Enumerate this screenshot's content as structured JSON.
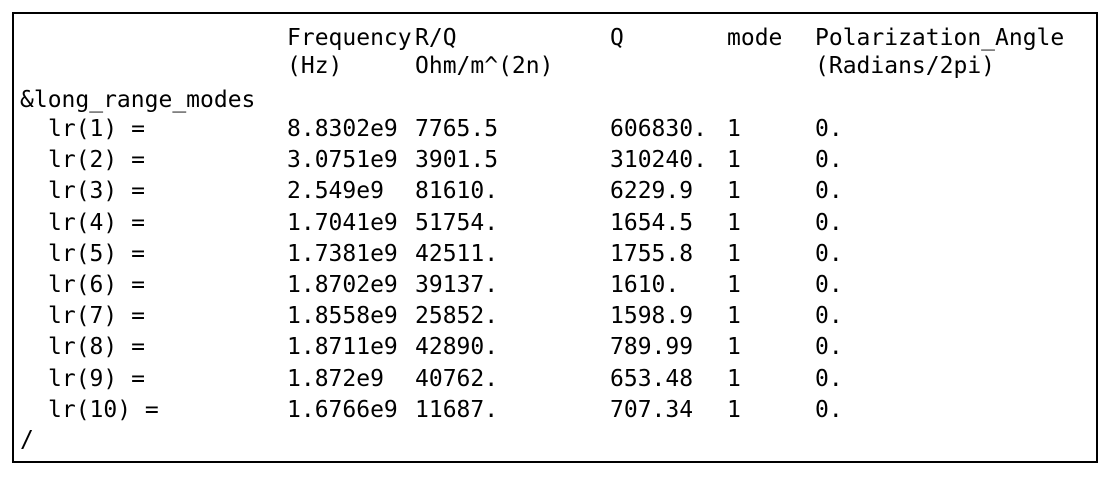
{
  "header": {
    "columns": [
      {
        "lines": [
          "Frequency",
          "(Hz)"
        ]
      },
      {
        "lines": [
          "R/Q",
          "Ohm/m^(2n)"
        ]
      },
      {
        "lines": [
          "Q"
        ]
      },
      {
        "lines": [
          "mode"
        ]
      },
      {
        "lines": [
          "Polarization_Angle",
          "(Radians/2pi)"
        ]
      }
    ]
  },
  "section": "&long_range_modes",
  "rows": [
    {
      "label": "lr(1) =",
      "cells": [
        "8.8302e9",
        "7765.5",
        "606830.",
        "1",
        "0."
      ]
    },
    {
      "label": "lr(2) =",
      "cells": [
        "3.0751e9",
        "3901.5",
        "310240.",
        "1",
        "0."
      ]
    },
    {
      "label": "lr(3) =",
      "cells": [
        "2.549e9",
        "81610.",
        "6229.9",
        "1",
        "0."
      ]
    },
    {
      "label": "lr(4) =",
      "cells": [
        "1.7041e9",
        "51754.",
        "1654.5",
        "1",
        "0."
      ]
    },
    {
      "label": "lr(5) =",
      "cells": [
        "1.7381e9",
        "42511.",
        "1755.8",
        "1",
        "0."
      ]
    },
    {
      "label": "lr(6) =",
      "cells": [
        "1.8702e9",
        "39137.",
        "1610.",
        "1",
        "0."
      ]
    },
    {
      "label": "lr(7) =",
      "cells": [
        "1.8558e9",
        "25852.",
        "1598.9",
        "1",
        "0."
      ]
    },
    {
      "label": "lr(8) =",
      "cells": [
        "1.8711e9",
        "42890.",
        "789.99",
        "1",
        "0."
      ]
    },
    {
      "label": "lr(9) =",
      "cells": [
        "1.872e9",
        "40762.",
        "653.48",
        "1",
        "0."
      ]
    },
    {
      "label": "lr(10) =",
      "cells": [
        "1.6766e9",
        "11687.",
        "707.34",
        "1",
        "0."
      ]
    }
  ],
  "terminator": "/"
}
